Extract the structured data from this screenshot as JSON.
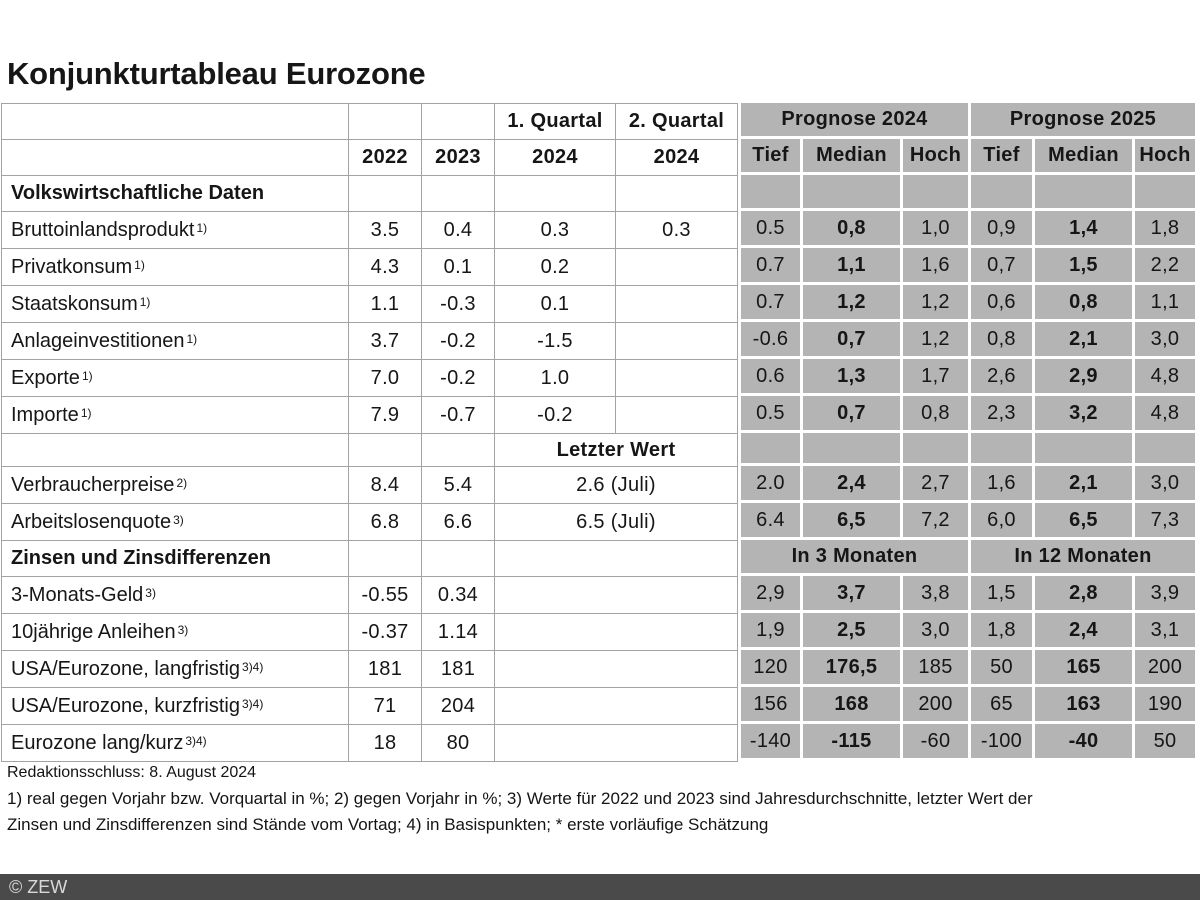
{
  "chart_data": {
    "type": "table",
    "title": "Konjunkturtableau Eurozone",
    "column_groups": [
      "Prognose 2024",
      "Prognose 2025",
      "In 3 Monaten",
      "In 12 Monaten"
    ],
    "forecast_columns": [
      "Tief",
      "Median",
      "Hoch"
    ],
    "colors": {
      "forecast_cell_gray": "#b4b4b4",
      "grid_line": "#a3a3a3",
      "bar_bg": "#4a4a4a",
      "bar_text": "#d9d9d9"
    },
    "rows": [
      {
        "left": [
          "",
          "",
          "",
          {
            "t": "1. Quartal",
            "b": 1
          },
          {
            "t": "2. Quartal",
            "b": 1
          }
        ],
        "right": [
          {
            "t": "Prognose 2024",
            "b": 1,
            "s": 3
          },
          {
            "t": "Prognose 2025",
            "b": 1,
            "s": 3
          }
        ]
      },
      {
        "left": [
          "",
          {
            "t": "2022",
            "b": 1
          },
          {
            "t": "2023",
            "b": 1
          },
          {
            "t": "2024",
            "b": 1
          },
          {
            "t": "2024",
            "b": 1
          }
        ],
        "right": [
          {
            "t": "Tief",
            "b": 1
          },
          {
            "t": "Median",
            "b": 1
          },
          {
            "t": "Hoch",
            "b": 1
          },
          {
            "t": "Tief",
            "b": 1
          },
          {
            "t": "Median",
            "b": 1
          },
          {
            "t": "Hoch",
            "b": 1
          }
        ]
      },
      {
        "left": [
          {
            "t": "Volkswirtschaftliche Daten",
            "b": 1,
            "a": "l"
          },
          "",
          "",
          "",
          ""
        ],
        "right": [
          "",
          "",
          "",
          "",
          "",
          ""
        ]
      },
      {
        "left": [
          {
            "t": "Bruttoinlandsprodukt",
            "sup": "1)",
            "a": "l"
          },
          "3.5",
          "0.4",
          "0.3",
          "0.3"
        ],
        "right": [
          "0.5",
          {
            "t": "0,8",
            "b": 1
          },
          "1,0",
          "0,9",
          {
            "t": "1,4",
            "b": 1
          },
          "1,8"
        ]
      },
      {
        "left": [
          {
            "t": "Privatkonsum",
            "sup": "1)",
            "a": "l"
          },
          "4.3",
          "0.1",
          "0.2",
          ""
        ],
        "right": [
          "0.7",
          {
            "t": "1,1",
            "b": 1
          },
          "1,6",
          "0,7",
          {
            "t": "1,5",
            "b": 1
          },
          "2,2"
        ]
      },
      {
        "left": [
          {
            "t": "Staatskonsum",
            "sup": "1)",
            "a": "l"
          },
          "1.1",
          "-0.3",
          "0.1",
          ""
        ],
        "right": [
          "0.7",
          {
            "t": "1,2",
            "b": 1
          },
          "1,2",
          "0,6",
          {
            "t": "0,8",
            "b": 1
          },
          "1,1"
        ]
      },
      {
        "left": [
          {
            "t": "Anlageinvestitionen",
            "sup": "1)",
            "a": "l"
          },
          "3.7",
          "-0.2",
          "-1.5",
          ""
        ],
        "right": [
          "-0.6",
          {
            "t": "0,7",
            "b": 1
          },
          "1,2",
          "0,8",
          {
            "t": "2,1",
            "b": 1
          },
          "3,0"
        ]
      },
      {
        "left": [
          {
            "t": "Exporte",
            "sup": "1)",
            "a": "l"
          },
          "7.0",
          "-0.2",
          "1.0",
          ""
        ],
        "right": [
          "0.6",
          {
            "t": "1,3",
            "b": 1
          },
          "1,7",
          "2,6",
          {
            "t": "2,9",
            "b": 1
          },
          "4,8"
        ]
      },
      {
        "left": [
          {
            "t": "Importe",
            "sup": "1)",
            "a": "l"
          },
          "7.9",
          "-0.7",
          "-0.2",
          ""
        ],
        "right": [
          "0.5",
          {
            "t": "0,7",
            "b": 1
          },
          "0,8",
          "2,3",
          {
            "t": "3,2",
            "b": 1
          },
          "4,8"
        ]
      },
      {
        "left": [
          "",
          "",
          "",
          {
            "t": "Letzter Wert",
            "b": 1,
            "s": 2
          }
        ],
        "right": [
          "",
          "",
          "",
          "",
          "",
          ""
        ]
      },
      {
        "left": [
          {
            "t": "Verbraucherpreise",
            "sup": "2)",
            "a": "l"
          },
          "8.4",
          "5.4",
          {
            "t": "2.6 (Juli)",
            "s": 2
          }
        ],
        "right": [
          "2.0",
          {
            "t": "2,4",
            "b": 1
          },
          "2,7",
          "1,6",
          {
            "t": "2,1",
            "b": 1
          },
          "3,0"
        ]
      },
      {
        "left": [
          {
            "t": "Arbeitslosenquote",
            "sup": "3)",
            "a": "l"
          },
          "6.8",
          "6.6",
          {
            "t": "6.5 (Juli)",
            "s": 2
          }
        ],
        "right": [
          "6.4",
          {
            "t": "6,5",
            "b": 1
          },
          "7,2",
          "6,0",
          {
            "t": "6,5",
            "b": 1
          },
          "7,3"
        ]
      },
      {
        "left": [
          {
            "t": "Zinsen und Zinsdifferenzen",
            "b": 1,
            "a": "l"
          },
          "",
          "",
          {
            "t": "",
            "s": 2
          }
        ],
        "right": [
          {
            "t": "In 3 Monaten",
            "b": 1,
            "s": 3
          },
          {
            "t": "In 12 Monaten",
            "b": 1,
            "s": 3
          }
        ]
      },
      {
        "left": [
          {
            "t": "3-Monats-Geld",
            "sup": "3)",
            "a": "l"
          },
          "-0.55",
          "0.34",
          {
            "t": "",
            "s": 2
          }
        ],
        "right": [
          "2,9",
          {
            "t": "3,7",
            "b": 1
          },
          "3,8",
          "1,5",
          {
            "t": "2,8",
            "b": 1
          },
          "3,9"
        ]
      },
      {
        "left": [
          {
            "t": "10jährige Anleihen",
            "sup": "3)",
            "a": "l"
          },
          "-0.37",
          "1.14",
          {
            "t": "",
            "s": 2
          }
        ],
        "right": [
          "1,9",
          {
            "t": "2,5",
            "b": 1
          },
          "3,0",
          "1,8",
          {
            "t": "2,4",
            "b": 1
          },
          "3,1"
        ]
      },
      {
        "left": [
          {
            "t": "USA/Eurozone, langfristig",
            "sup": "3)4)",
            "a": "l"
          },
          "181",
          "181",
          {
            "t": "",
            "s": 2
          }
        ],
        "right": [
          "120",
          {
            "t": "176,5",
            "b": 1
          },
          "185",
          "50",
          {
            "t": "165",
            "b": 1
          },
          "200"
        ]
      },
      {
        "left": [
          {
            "t": "USA/Eurozone, kurzfristig",
            "sup": "3)4)",
            "a": "l"
          },
          "71",
          "204",
          {
            "t": "",
            "s": 2
          }
        ],
        "right": [
          "156",
          {
            "t": "168",
            "b": 1
          },
          "200",
          "65",
          {
            "t": "163",
            "b": 1
          },
          "190"
        ]
      },
      {
        "left": [
          {
            "t": "Eurozone lang/kurz",
            "sup": "3)4)",
            "a": "l"
          },
          "18",
          "80",
          {
            "t": "",
            "s": 2
          }
        ],
        "right": [
          "-140",
          {
            "t": "-115",
            "b": 1
          },
          "-60",
          "-100",
          {
            "t": "-40",
            "b": 1
          },
          "50"
        ]
      }
    ]
  },
  "footer": {
    "deadline": "Redaktionsschluss: 8. August 2024",
    "footnote_line1": "1) real gegen Vorjahr bzw. Vorquartal in %; 2) gegen Vorjahr in %; 3) Werte für 2022 und 2023 sind Jahresdurchschnitte, letzter Wert der",
    "footnote_line2": "Zinsen und Zinsdifferenzen sind Stände vom Vortag; 4) in Basispunkten; * erste vorläufige Schätzung"
  },
  "copyright": "© ZEW"
}
